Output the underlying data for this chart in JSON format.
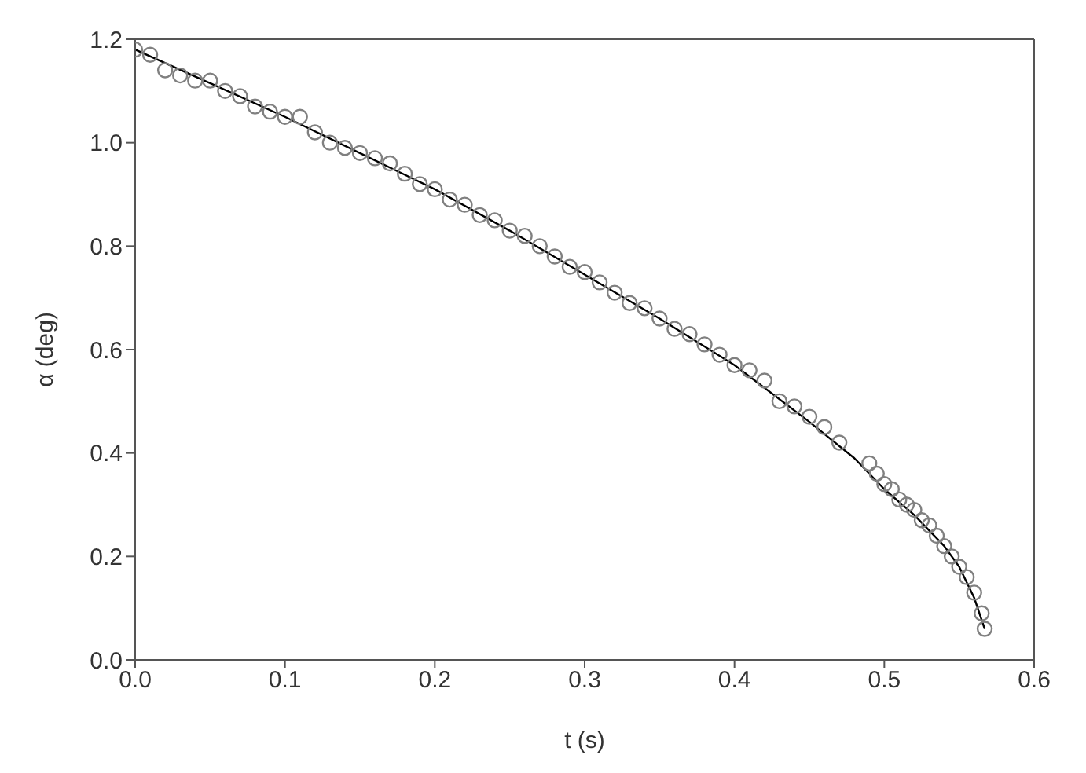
{
  "chart_data": {
    "type": "scatter",
    "xlabel": "t (s)",
    "ylabel": "α (deg)",
    "xlim": [
      0,
      0.6
    ],
    "xticks": [
      {
        "value": 0,
        "label": "0.0"
      },
      0.1,
      0.2,
      0.3,
      0.4,
      0.5,
      0.6
    ],
    "ylim": [
      0,
      1.2
    ],
    "yticks": [
      {
        "value": 0,
        "label": "0.0"
      },
      0.2,
      0.4,
      0.6,
      0.8,
      {
        "value": 1,
        "label": "1.0"
      },
      {
        "value": 1.2,
        "label": "1.2"
      }
    ],
    "legend": false,
    "series": [
      {
        "marker": "circle",
        "color": "#808080",
        "x": [
          0,
          0.01,
          0.02,
          0.03,
          0.04,
          0.05,
          0.06,
          0.07,
          0.08,
          0.09,
          0.1,
          0.11,
          0.12,
          0.13,
          0.14,
          0.15,
          0.16,
          0.17,
          0.18,
          0.19,
          0.2,
          0.21,
          0.22,
          0.23,
          0.24,
          0.25,
          0.26,
          0.27,
          0.28,
          0.29,
          0.3,
          0.31,
          0.32,
          0.33,
          0.34,
          0.35,
          0.36,
          0.37,
          0.38,
          0.39,
          0.4,
          0.41,
          0.42,
          0.43,
          0.44,
          0.45,
          0.46,
          0.47,
          0.49,
          0.495,
          0.5,
          0.505,
          0.51,
          0.515,
          0.52,
          0.525,
          0.53,
          0.535,
          0.54,
          0.545,
          0.55,
          0.555,
          0.56,
          0.565,
          0.567
        ],
        "values": [
          1.18,
          1.17,
          1.14,
          1.13,
          1.12,
          1.12,
          1.1,
          1.09,
          1.07,
          1.06,
          1.05,
          1.05,
          1.02,
          1.0,
          0.99,
          0.98,
          0.97,
          0.96,
          0.94,
          0.92,
          0.91,
          0.89,
          0.88,
          0.86,
          0.85,
          0.83,
          0.82,
          0.8,
          0.78,
          0.76,
          0.75,
          0.73,
          0.71,
          0.69,
          0.68,
          0.66,
          0.64,
          0.63,
          0.61,
          0.59,
          0.57,
          0.56,
          0.54,
          0.5,
          0.49,
          0.47,
          0.45,
          0.42,
          0.38,
          0.36,
          0.34,
          0.33,
          0.31,
          0.3,
          0.29,
          0.27,
          0.26,
          0.24,
          0.22,
          0.2,
          0.18,
          0.16,
          0.13,
          0.09,
          0.06
        ]
      },
      {
        "type": "line",
        "marker": "none",
        "color": "#000000",
        "x": [
          0,
          0.05,
          0.1,
          0.15,
          0.2,
          0.25,
          0.3,
          0.35,
          0.4,
          0.45,
          0.48,
          0.5,
          0.52,
          0.54,
          0.55,
          0.56,
          0.567
        ],
        "values": [
          1.18,
          1.115,
          1.05,
          0.98,
          0.91,
          0.83,
          0.745,
          0.66,
          0.57,
          0.46,
          0.39,
          0.33,
          0.28,
          0.22,
          0.18,
          0.12,
          0.06
        ]
      }
    ]
  }
}
